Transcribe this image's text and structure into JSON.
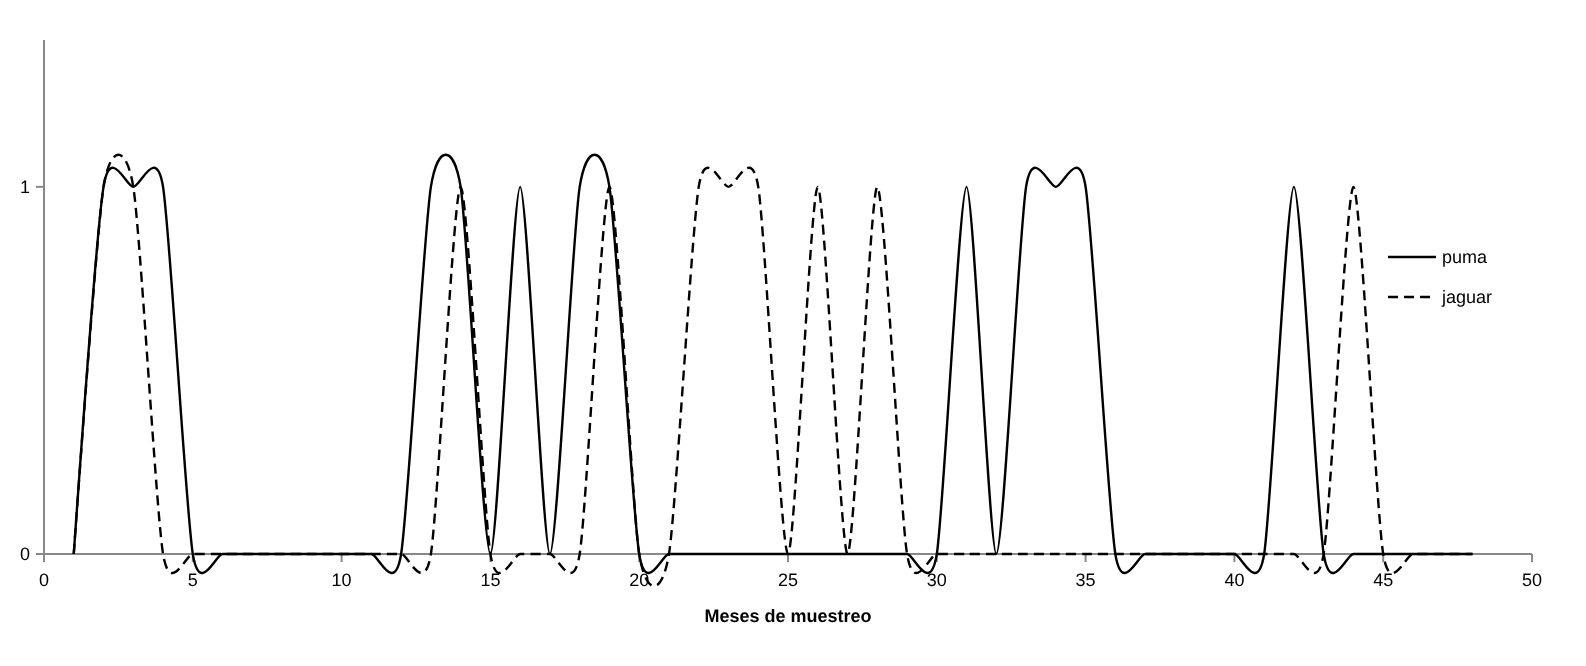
{
  "chart_data": {
    "type": "line",
    "xlabel": "Meses de muestreo",
    "x": [
      1,
      2,
      3,
      4,
      5,
      6,
      7,
      8,
      9,
      10,
      11,
      12,
      13,
      14,
      15,
      16,
      17,
      18,
      19,
      20,
      21,
      22,
      23,
      24,
      25,
      26,
      27,
      28,
      29,
      30,
      31,
      32,
      33,
      34,
      35,
      36,
      37,
      38,
      39,
      40,
      41,
      42,
      43,
      44,
      45,
      46,
      47,
      48
    ],
    "xlim": [
      0,
      50
    ],
    "xticks": [
      0,
      5,
      10,
      15,
      20,
      25,
      30,
      35,
      40,
      45,
      50
    ],
    "ylim": [
      0,
      1.4
    ],
    "yticks": [
      0,
      1
    ],
    "grid": false,
    "legend": "right",
    "marker": "none",
    "series": [
      {
        "name": "puma",
        "color": "#000000",
        "line_style": "solid",
        "values": [
          0,
          1,
          1,
          1,
          0,
          0,
          0,
          0,
          0,
          0,
          0,
          0,
          1,
          1,
          0,
          1,
          0,
          1,
          1,
          0,
          0,
          0,
          0,
          0,
          0,
          0,
          0,
          0,
          0,
          0,
          1,
          0,
          1,
          1,
          1,
          0,
          0,
          0,
          0,
          0,
          0,
          1,
          0,
          0,
          0,
          0,
          0,
          0
        ]
      },
      {
        "name": "jaguar",
        "color": "#000000",
        "line_style": "dashed",
        "values": [
          0,
          1,
          1,
          0,
          0,
          0,
          0,
          0,
          0,
          0,
          0,
          0,
          0,
          1,
          0,
          0,
          0,
          0,
          1,
          0,
          0,
          1,
          1,
          1,
          0,
          1,
          0,
          1,
          0,
          0,
          0,
          0,
          0,
          0,
          0,
          0,
          0,
          0,
          0,
          0,
          0,
          0,
          0,
          1,
          0,
          0,
          0,
          0
        ]
      }
    ]
  }
}
